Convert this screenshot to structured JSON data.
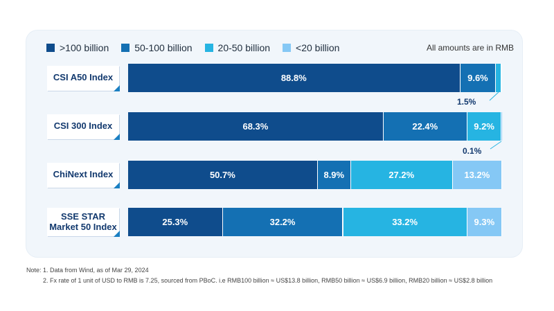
{
  "chart_data": {
    "type": "stacked-bar-horizontal",
    "title": "",
    "unit_note": "All amounts are  in RMB",
    "legend": [
      {
        "name": ">100 billion",
        "color": "#0f4c8c"
      },
      {
        "name": "50-100 billion",
        "color": "#1470b3"
      },
      {
        "name": "20-50 billion",
        "color": "#26b4e2"
      },
      {
        "name": "<20 billion",
        "color": "#85c8f5"
      }
    ],
    "categories": [
      "CSI A50 Index",
      "CSI 300 Index",
      "ChiNext Index",
      "SSE STAR Market 50 Index"
    ],
    "category_lines": [
      [
        "CSI A50 Index"
      ],
      [
        "CSI 300 Index"
      ],
      [
        "ChiNext Index"
      ],
      [
        "SSE STAR",
        "Market 50 Index"
      ]
    ],
    "series": [
      {
        "name": ">100 billion",
        "values": [
          88.8,
          68.3,
          50.7,
          25.3
        ]
      },
      {
        "name": "50-100 billion",
        "values": [
          9.6,
          22.4,
          8.9,
          32.2
        ]
      },
      {
        "name": "20-50 billion",
        "values": [
          1.5,
          9.2,
          27.2,
          33.2
        ]
      },
      {
        "name": "<20 billion",
        "values": [
          0.1,
          0.1,
          13.2,
          9.3
        ]
      }
    ],
    "callouts": [
      {
        "category": "CSI A50 Index",
        "series": "20-50 billion",
        "text": "1.5%"
      },
      {
        "category": "CSI 300 Index",
        "series": "<20 billion",
        "text": "0.1%"
      }
    ],
    "value_suffix": "%"
  },
  "notes": [
    "Note: 1. Data from Wind, as of Mar 29, 2024",
    "2. Fx rate of 1 unit of USD to RMB is 7.25, sourced from PBoC. i.e RMB100 billion ≈ US$13.8 billion, RMB50 billion ≈ US$6.9 billion, RMB20 billion ≈ US$2.8 billion"
  ]
}
